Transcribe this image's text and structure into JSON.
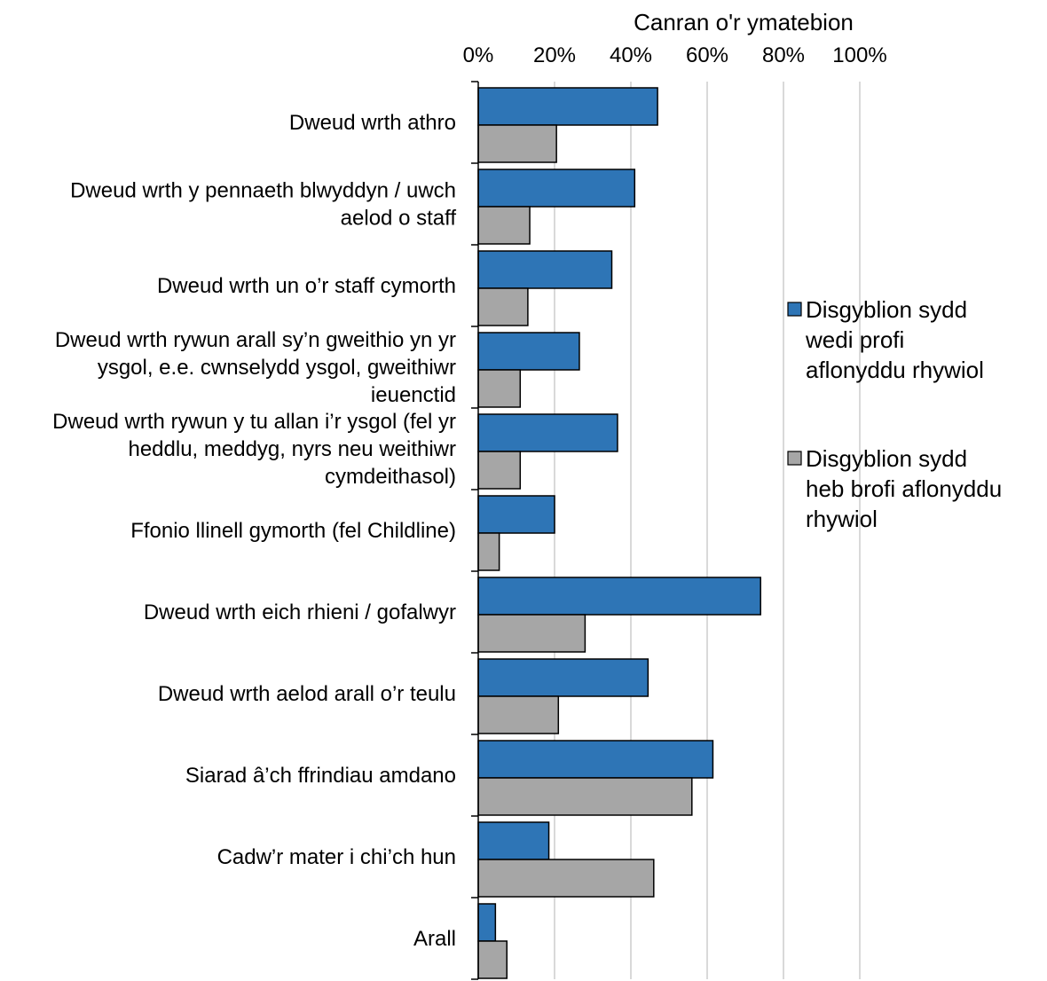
{
  "chart_data": {
    "type": "bar",
    "orientation": "horizontal",
    "title": "",
    "xlabel": "Canran o'r ymatebion",
    "ylabel": "",
    "xlim": [
      0,
      100
    ],
    "x_ticks": [
      "0%",
      "20%",
      "40%",
      "60%",
      "80%",
      "100%"
    ],
    "grid": true,
    "legend_position": "right",
    "categories": [
      [
        "Dweud wrth athro"
      ],
      [
        "Dweud wrth y pennaeth blwyddyn / uwch",
        "aelod o staff"
      ],
      [
        "Dweud wrth un o’r staff cymorth"
      ],
      [
        "Dweud wrth rywun arall sy’n gweithio yn yr",
        "ysgol, e.e. cwnselydd ysgol, gweithiwr",
        "ieuenctid"
      ],
      [
        "Dweud wrth rywun y tu allan i’r ysgol (fel yr",
        "heddlu, meddyg, nyrs neu weithiwr",
        "cymdeithasol)"
      ],
      [
        "Ffonio llinell gymorth (fel Childline)"
      ],
      [
        "Dweud wrth eich rhieni / gofalwyr"
      ],
      [
        "Dweud wrth aelod arall o’r teulu"
      ],
      [
        "Siarad â’ch ffrindiau amdano"
      ],
      [
        "Cadw’r mater i chi’ch hun"
      ],
      [
        "Arall"
      ]
    ],
    "series": [
      {
        "name": [
          "Disgyblion sydd",
          "wedi profi",
          "aflonyddu rhywiol"
        ],
        "color": "#2e75b6",
        "values": [
          47,
          41,
          35,
          26.5,
          36.5,
          20,
          74,
          44.5,
          61.5,
          18.5,
          4.5
        ]
      },
      {
        "name": [
          "Disgyblion sydd",
          "heb brofi aflonyddu",
          "rhywiol"
        ],
        "color": "#a6a6a6",
        "values": [
          20.5,
          13.5,
          13,
          11,
          11,
          5.5,
          28,
          21,
          56,
          46,
          7.5
        ]
      }
    ]
  }
}
